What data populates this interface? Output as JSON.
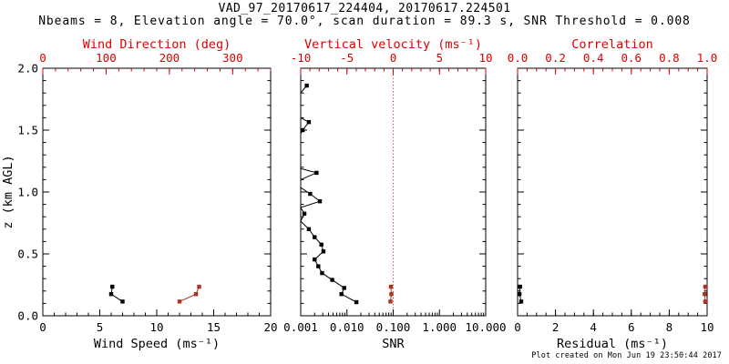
{
  "header": {
    "title": "VAD_97_20170617_224404, 20170617.224501",
    "subtitle": "Nbeams = 8, Elevation angle = 70.0°, scan duration = 89.3 s, SNR Threshold = 0.008"
  },
  "footer": {
    "created": "Plot created on Mon Jun 19 23:50:44 2017"
  },
  "colors": {
    "background": "#ffffff",
    "black": "#000000",
    "label_red": "#dd0000",
    "data_red": "#aa3322"
  },
  "chart_data": [
    {
      "type": "scatter",
      "panel": "wind",
      "ylabel": "z (km AGL)",
      "ylim": [
        0,
        2
      ],
      "yticks": [
        "0.0",
        "0.5",
        "1.0",
        "1.5",
        "2.0"
      ],
      "y_minor": 0.1,
      "x_bottom": {
        "label": "Wind Speed (ms⁻¹)",
        "lim": [
          0,
          20
        ],
        "ticks": [
          "0",
          "5",
          "10",
          "15",
          "20"
        ],
        "minor": 1,
        "scale": "linear",
        "color": "black"
      },
      "x_top": {
        "label": "Wind Direction (deg)",
        "lim": [
          0,
          360
        ],
        "ticks": [
          "0",
          "100",
          "200",
          "300"
        ],
        "minor": 20,
        "scale": "linear",
        "color": "label_red"
      },
      "series": [
        {
          "name": "wind-speed",
          "axis": "bottom",
          "color": "black",
          "points": [
            [
              6.1,
              0.235
            ],
            [
              6.0,
              0.175
            ],
            [
              7.0,
              0.115
            ]
          ]
        },
        {
          "name": "wind-direction",
          "axis": "top",
          "color": "data_red",
          "points": [
            [
              247,
              0.235
            ],
            [
              242,
              0.175
            ],
            [
              216,
              0.115
            ]
          ]
        }
      ]
    },
    {
      "type": "line",
      "panel": "snr",
      "ylim": [
        0,
        2
      ],
      "x_bottom": {
        "label": "SNR",
        "lim": [
          0.001,
          10
        ],
        "ticks": [
          "0.001",
          "0.010",
          "0.100",
          "1.000",
          "10.000"
        ],
        "scale": "log",
        "color": "black"
      },
      "x_top": {
        "label": "Vertical velocity (ms⁻¹)",
        "lim": [
          -10,
          10
        ],
        "ticks": [
          "-10",
          "-5",
          "0",
          "5",
          "10"
        ],
        "minor": 1,
        "scale": "linear",
        "color": "label_red"
      },
      "refline": {
        "axis": "top",
        "value": 0,
        "style": "dotted",
        "color": "label_red"
      },
      "series": [
        {
          "name": "snr-profile",
          "axis": "bottom",
          "color": "black",
          "points": [
            [
              0.00135,
              1.86,
              1
            ],
            [
              0.001,
              1.8,
              0
            ],
            [
              0.001,
              1.6,
              0
            ],
            [
              0.0015,
              1.565,
              1
            ],
            [
              0.0011,
              1.5,
              1
            ],
            [
              0.001,
              1.47,
              0
            ],
            [
              0.001,
              1.19,
              0
            ],
            [
              0.0022,
              1.155,
              1
            ],
            [
              0.001,
              1.1,
              0
            ],
            [
              0.001,
              1.035,
              0
            ],
            [
              0.0016,
              0.985,
              1
            ],
            [
              0.0026,
              0.925,
              1
            ],
            [
              0.001,
              0.875,
              0
            ],
            [
              0.0012,
              0.825,
              1
            ],
            [
              0.001,
              0.765,
              0
            ],
            [
              0.0015,
              0.7,
              1
            ],
            [
              0.002,
              0.635,
              1
            ],
            [
              0.0028,
              0.575,
              1
            ],
            [
              0.0031,
              0.52,
              1
            ],
            [
              0.002,
              0.455,
              1
            ],
            [
              0.0024,
              0.4,
              1
            ],
            [
              0.0029,
              0.345,
              1
            ],
            [
              0.0048,
              0.29,
              1
            ],
            [
              0.0087,
              0.225,
              1
            ],
            [
              0.0076,
              0.175,
              1
            ],
            [
              0.016,
              0.11,
              1
            ]
          ]
        },
        {
          "name": "vertical-velocity",
          "axis": "top",
          "color": "data_red",
          "points": [
            [
              -0.25,
              0.235
            ],
            [
              -0.2,
              0.175
            ],
            [
              -0.3,
              0.115
            ]
          ]
        }
      ]
    },
    {
      "type": "scatter",
      "panel": "residual",
      "ylim": [
        0,
        2
      ],
      "x_bottom": {
        "label": "Residual (ms⁻¹)",
        "lim": [
          0,
          10
        ],
        "ticks": [
          "0",
          "2",
          "4",
          "6",
          "8",
          "10"
        ],
        "minor": 0.5,
        "scale": "linear",
        "color": "black"
      },
      "x_top": {
        "label": "Correlation",
        "lim": [
          0,
          1
        ],
        "ticks": [
          "0.0",
          "0.2",
          "0.4",
          "0.6",
          "0.8",
          "1.0"
        ],
        "minor": 0.05,
        "scale": "linear",
        "color": "label_red"
      },
      "series": [
        {
          "name": "residual",
          "axis": "bottom",
          "color": "black",
          "points": [
            [
              0.13,
              0.235
            ],
            [
              0.1,
              0.175
            ],
            [
              0.19,
              0.115
            ]
          ]
        },
        {
          "name": "correlation",
          "axis": "top",
          "color": "data_red",
          "points": [
            [
              0.99,
              0.235
            ],
            [
              0.987,
              0.175
            ],
            [
              0.99,
              0.115
            ]
          ]
        }
      ]
    }
  ]
}
